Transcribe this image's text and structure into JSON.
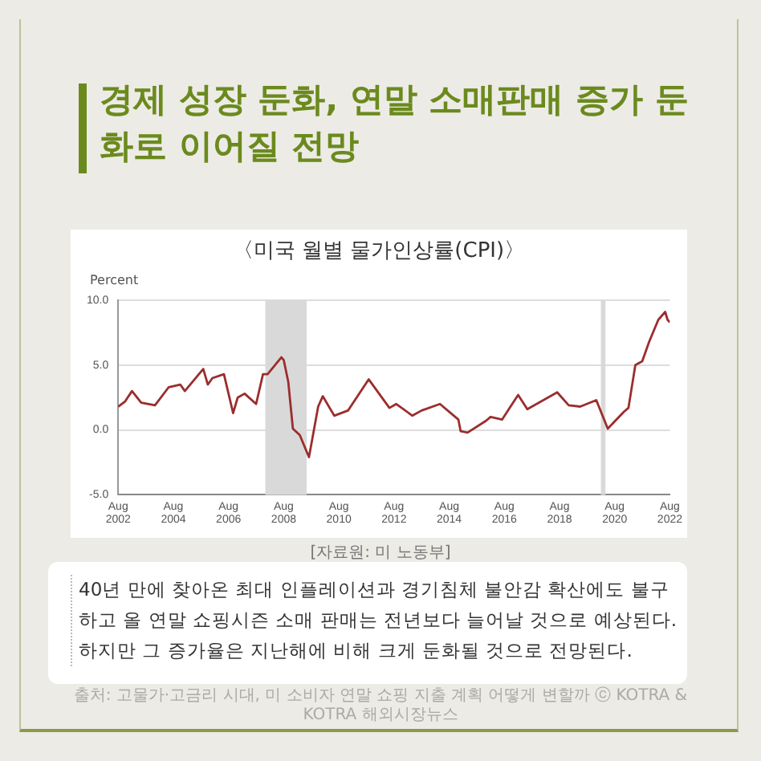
{
  "chart_data": {
    "type": "line",
    "title": "경제 성장 둔화, 연말 소매판매 증가 둔화로 이어질 전망",
    "subtitle": "〈미국 월별 물가인상률(CPI)〉",
    "ylabel": "Percent",
    "x": [
      "2002-08",
      "2002-11",
      "2003-02",
      "2003-06",
      "2003-12",
      "2004-06",
      "2004-11",
      "2005-01",
      "2005-09",
      "2005-11",
      "2006-01",
      "2006-06",
      "2006-10",
      "2006-12",
      "2007-03",
      "2007-08",
      "2007-11",
      "2008-01",
      "2008-07",
      "2008-08",
      "2008-10",
      "2008-12",
      "2009-03",
      "2009-07",
      "2009-11",
      "2010-01",
      "2010-06",
      "2010-12",
      "2011-09",
      "2012-06",
      "2012-09",
      "2013-04",
      "2013-08",
      "2014-04",
      "2014-12",
      "2015-01",
      "2015-04",
      "2015-12",
      "2016-02",
      "2016-07",
      "2017-02",
      "2017-06",
      "2018-07",
      "2018-12",
      "2019-05",
      "2019-12",
      "2020-05",
      "2020-12",
      "2021-02",
      "2021-05",
      "2021-08",
      "2021-11",
      "2022-03",
      "2022-06",
      "2022-07",
      "2022-08"
    ],
    "series": [
      {
        "color": "#9b2d2d",
        "values": [
          1.8,
          2.2,
          3.0,
          2.1,
          1.9,
          3.3,
          3.5,
          3.0,
          4.7,
          3.5,
          4.0,
          4.3,
          1.3,
          2.5,
          2.8,
          2.0,
          4.3,
          4.3,
          5.6,
          5.4,
          3.7,
          0.1,
          -0.4,
          -2.1,
          1.8,
          2.6,
          1.1,
          1.5,
          3.9,
          1.7,
          2.0,
          1.1,
          1.5,
          2.0,
          0.8,
          -0.1,
          -0.2,
          0.7,
          1.0,
          0.8,
          2.7,
          1.6,
          2.9,
          1.9,
          1.8,
          2.3,
          0.1,
          1.4,
          1.7,
          5.0,
          5.3,
          6.8,
          8.5,
          9.1,
          8.5,
          8.3
        ]
      }
    ],
    "xlim": [
      "2002-08",
      "2022-08"
    ],
    "xticks": [
      {
        "value": "2002-08",
        "label": "Aug\n2002"
      },
      {
        "value": "2004-08",
        "label": "Aug\n2004"
      },
      {
        "value": "2006-08",
        "label": "Aug\n2006"
      },
      {
        "value": "2008-08",
        "label": "Aug\n2008"
      },
      {
        "value": "2010-08",
        "label": "Aug\n2010"
      },
      {
        "value": "2012-08",
        "label": "Aug\n2012"
      },
      {
        "value": "2014-08",
        "label": "Aug\n2014"
      },
      {
        "value": "2016-08",
        "label": "Aug\n2016"
      },
      {
        "value": "2018-08",
        "label": "Aug\n2018"
      },
      {
        "value": "2020-08",
        "label": "Aug\n2020"
      },
      {
        "value": "2022-08",
        "label": "Aug\n2022"
      }
    ],
    "ylim": [
      -5,
      10
    ],
    "yticks": [
      {
        "value": -5,
        "label": "-5.0"
      },
      {
        "value": 0,
        "label": "0.0"
      },
      {
        "value": 5,
        "label": "5.0"
      },
      {
        "value": 10,
        "label": "10.0"
      }
    ],
    "bands": [
      {
        "axis": "x",
        "from": "2007-12",
        "to": "2009-06",
        "color": "#d9d9d9"
      },
      {
        "axis": "x",
        "from": "2020-02",
        "to": "2020-04",
        "color": "#d9d9d9"
      }
    ],
    "grid": "y",
    "legend": false,
    "marker": "none",
    "line_style": "solid",
    "annotations": [
      "[자료원: 미 노동부]",
      "40년 만에 찾아온 최대 인플레이션과 경기침체 불안감 확산에도 불구하고 올 연말 쇼핑시즌 소매 판매는 전년보다 늘어날 것으로 예상된다. 하지만 그 증가율은 지난해에 비해 크게 둔화될 것으로 전망된다.",
      "출처: 고물가·고금리 시대, 미 소비자 연말 쇼핑 지출 계획 어떻게 변할까 ⓒ KOTRA & KOTRA 해외시장뉴스"
    ]
  }
}
